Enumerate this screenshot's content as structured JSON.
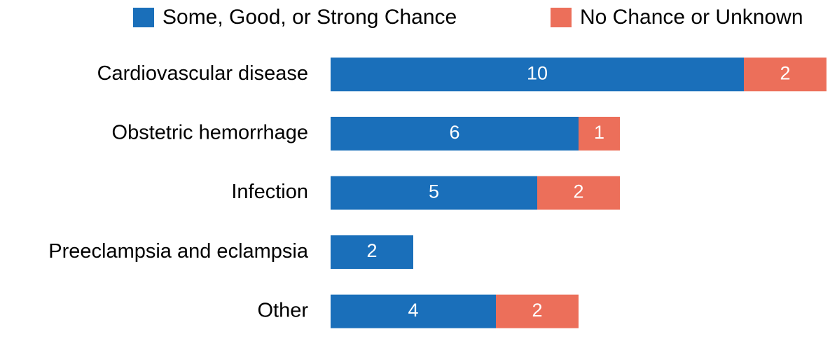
{
  "chart_data": {
    "type": "bar",
    "orientation": "horizontal",
    "stacked": true,
    "categories": [
      "Cardiovascular disease",
      "Obstetric hemorrhage",
      "Infection",
      "Preeclampsia and eclampsia",
      "Other"
    ],
    "series": [
      {
        "name": "Some, Good, or Strong Chance",
        "color": "#1a6fba",
        "values": [
          10,
          6,
          5,
          2,
          4
        ]
      },
      {
        "name": "No Chance or Unknown",
        "color": "#ec6f5a",
        "values": [
          2,
          1,
          2,
          null,
          2
        ]
      }
    ],
    "legend": "top"
  }
}
